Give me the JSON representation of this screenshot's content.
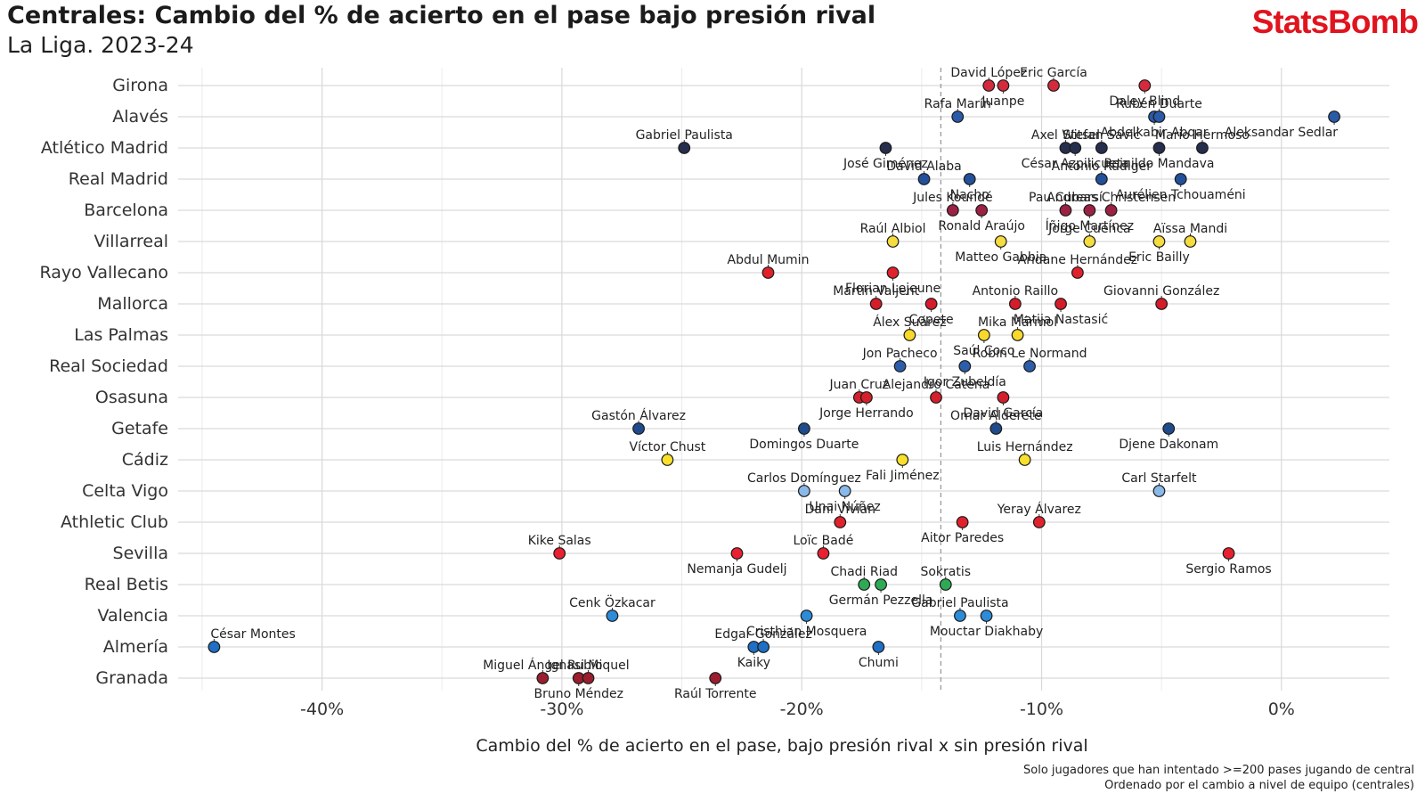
{
  "header": {
    "title": "Centrales: Cambio del % de acierto en el pase bajo presión rival",
    "subtitle": "La Liga. 2023-24",
    "logo": "StatsBomb"
  },
  "notes": {
    "line1": "Solo jugadores que han intentado >=200 pases jugando de central",
    "line2": "Ordenado por el cambio a nivel de equipo (centrales)"
  },
  "chart_data": {
    "type": "scatter",
    "xlabel": "Cambio del % de acierto en el pase, bajo presión rival x sin presión rival",
    "xlim": [
      -46,
      4.5
    ],
    "xticks": [
      -40,
      -30,
      -20,
      -10,
      0
    ],
    "xtick_labels": [
      "-40%",
      "-30%",
      "-20%",
      "-10%",
      "0%"
    ],
    "reference_line_x": -14.2,
    "grid": true,
    "teams": [
      {
        "name": "Girona",
        "color": "#d42a3d",
        "players": [
          {
            "name": "David López",
            "x": -12.2
          },
          {
            "name": "Juanpe",
            "x": -11.6
          },
          {
            "name": "Eric García",
            "x": -9.5
          },
          {
            "name": "Daley Blind",
            "x": -5.7
          }
        ]
      },
      {
        "name": "Alavés",
        "color": "#2a5aa8",
        "players": [
          {
            "name": "Rafa Marín",
            "x": -13.5
          },
          {
            "name": "Abdelkabir Abqar",
            "x": -5.3
          },
          {
            "name": "Rubén Duarte",
            "x": -5.1
          },
          {
            "name": "Aleksandar Sedlar",
            "x": 2.2
          }
        ]
      },
      {
        "name": "Atlético Madrid",
        "color": "#262e4d",
        "players": [
          {
            "name": "Gabriel Paulista",
            "x": -24.9
          },
          {
            "name": "José Giménez",
            "x": -16.5
          },
          {
            "name": "Axel Witsel",
            "x": -9.0
          },
          {
            "name": "César Azpilicueta",
            "x": -8.6
          },
          {
            "name": "Stefan Savić",
            "x": -7.5
          },
          {
            "name": "Reinildo Mandava",
            "x": -5.1
          },
          {
            "name": "Mario Hermoso",
            "x": -3.3
          }
        ]
      },
      {
        "name": "Real Madrid",
        "color": "#23509a",
        "players": [
          {
            "name": "David Alaba",
            "x": -14.9
          },
          {
            "name": "Nacho",
            "x": -13.0
          },
          {
            "name": "Antonio Rüdiger",
            "x": -7.5
          },
          {
            "name": "Aurélien Tchouaméni",
            "x": -4.2
          }
        ]
      },
      {
        "name": "Barcelona",
        "color": "#9b2242",
        "players": [
          {
            "name": "Jules Koundé",
            "x": -13.7
          },
          {
            "name": "Ronald Araújo",
            "x": -12.5
          },
          {
            "name": "Pau Cubarsí",
            "x": -9.0
          },
          {
            "name": "Íñigo Martínez",
            "x": -8.0
          },
          {
            "name": "Andreas Christensen",
            "x": -7.1
          }
        ]
      },
      {
        "name": "Villarreal",
        "color": "#f5dc3f",
        "players": [
          {
            "name": "Raúl Albiol",
            "x": -16.2
          },
          {
            "name": "Matteo Gabbia",
            "x": -11.7
          },
          {
            "name": "Jorge Cuenca",
            "x": -8.0
          },
          {
            "name": "Eric Bailly",
            "x": -5.1
          },
          {
            "name": "Aïssa Mandi",
            "x": -3.8
          }
        ]
      },
      {
        "name": "Rayo Vallecano",
        "color": "#e0222d",
        "players": [
          {
            "name": "Abdul Mumin",
            "x": -21.4
          },
          {
            "name": "Florian Lejeune",
            "x": -16.2
          },
          {
            "name": "Aridane Hernández",
            "x": -8.5
          }
        ]
      },
      {
        "name": "Mallorca",
        "color": "#d41c2a",
        "players": [
          {
            "name": "Martin Valjent",
            "x": -16.9
          },
          {
            "name": "Copete",
            "x": -14.6
          },
          {
            "name": "Antonio Raillo",
            "x": -11.1
          },
          {
            "name": "Matija Nastasić",
            "x": -9.2
          },
          {
            "name": "Giovanni González",
            "x": -5.0
          }
        ]
      },
      {
        "name": "Las Palmas",
        "color": "#f7d82b",
        "players": [
          {
            "name": "Álex Suárez",
            "x": -15.5
          },
          {
            "name": "Saúl Coco",
            "x": -12.4
          },
          {
            "name": "Mika Mármol",
            "x": -11.0
          }
        ]
      },
      {
        "name": "Real Sociedad",
        "color": "#2c5da8",
        "players": [
          {
            "name": "Jon Pacheco",
            "x": -15.9
          },
          {
            "name": "Igor Zubeldía",
            "x": -13.2
          },
          {
            "name": "Robin Le Normand",
            "x": -10.5
          }
        ]
      },
      {
        "name": "Osasuna",
        "color": "#d3202c",
        "players": [
          {
            "name": "Juan Cruz",
            "x": -17.6
          },
          {
            "name": "Jorge Herrando",
            "x": -17.3
          },
          {
            "name": "Alejandro Catena",
            "x": -14.4
          },
          {
            "name": "David García",
            "x": -11.6
          }
        ]
      },
      {
        "name": "Getafe",
        "color": "#1f4b8c",
        "players": [
          {
            "name": "Gastón Álvarez",
            "x": -26.8
          },
          {
            "name": "Domingos Duarte",
            "x": -19.9
          },
          {
            "name": "Omar Alderete",
            "x": -11.9
          },
          {
            "name": "Djene Dakonam",
            "x": -4.7
          }
        ]
      },
      {
        "name": "Cádiz",
        "color": "#f8e02c",
        "players": [
          {
            "name": "Víctor Chust",
            "x": -25.6
          },
          {
            "name": "Fali Jiménez",
            "x": -15.8
          },
          {
            "name": "Luis Hernández",
            "x": -10.7
          }
        ]
      },
      {
        "name": "Celta Vigo",
        "color": "#8ab8e8",
        "players": [
          {
            "name": "Carlos Domínguez",
            "x": -19.9
          },
          {
            "name": "Unai Núñez",
            "x": -18.2
          },
          {
            "name": "Carl Starfelt",
            "x": -5.1
          }
        ]
      },
      {
        "name": "Athletic Club",
        "color": "#e0222d",
        "players": [
          {
            "name": "Dani Vivian",
            "x": -18.4
          },
          {
            "name": "Aitor Paredes",
            "x": -13.3
          },
          {
            "name": "Yeray Álvarez",
            "x": -10.1
          }
        ]
      },
      {
        "name": "Sevilla",
        "color": "#e82030",
        "players": [
          {
            "name": "Kike Salas",
            "x": -30.1
          },
          {
            "name": "Nemanja Gudelj",
            "x": -22.7
          },
          {
            "name": "Loïc Badé",
            "x": -19.1
          },
          {
            "name": "Sergio Ramos",
            "x": -2.2
          }
        ]
      },
      {
        "name": "Real Betis",
        "color": "#2eaa55",
        "players": [
          {
            "name": "Chadi Riad",
            "x": -17.4
          },
          {
            "name": "Germán Pezzella",
            "x": -16.7
          },
          {
            "name": "Sokratis",
            "x": -14.0
          }
        ]
      },
      {
        "name": "Valencia",
        "color": "#2d8bd8",
        "players": [
          {
            "name": "Cenk Özkacar",
            "x": -27.9
          },
          {
            "name": "Cristhian Mosquera",
            "x": -19.8
          },
          {
            "name": "Gabriel Paulista",
            "x": -13.4
          },
          {
            "name": "Mouctar Diakhaby",
            "x": -12.3
          }
        ]
      },
      {
        "name": "Almería",
        "color": "#1f6fc4",
        "players": [
          {
            "name": "César Montes",
            "x": -44.5
          },
          {
            "name": "Kaiky",
            "x": -22.0
          },
          {
            "name": "Edgar González",
            "x": -21.6
          },
          {
            "name": "Chumi",
            "x": -16.8
          }
        ]
      },
      {
        "name": "Granada",
        "color": "#9b1e2f",
        "players": [
          {
            "name": "Miguel Ángel Rubio",
            "x": -30.8
          },
          {
            "name": "Bruno Méndez",
            "x": -29.3
          },
          {
            "name": "Ignasi Miquel",
            "x": -28.9
          },
          {
            "name": "Raúl Torrente",
            "x": -23.6
          }
        ]
      }
    ]
  }
}
